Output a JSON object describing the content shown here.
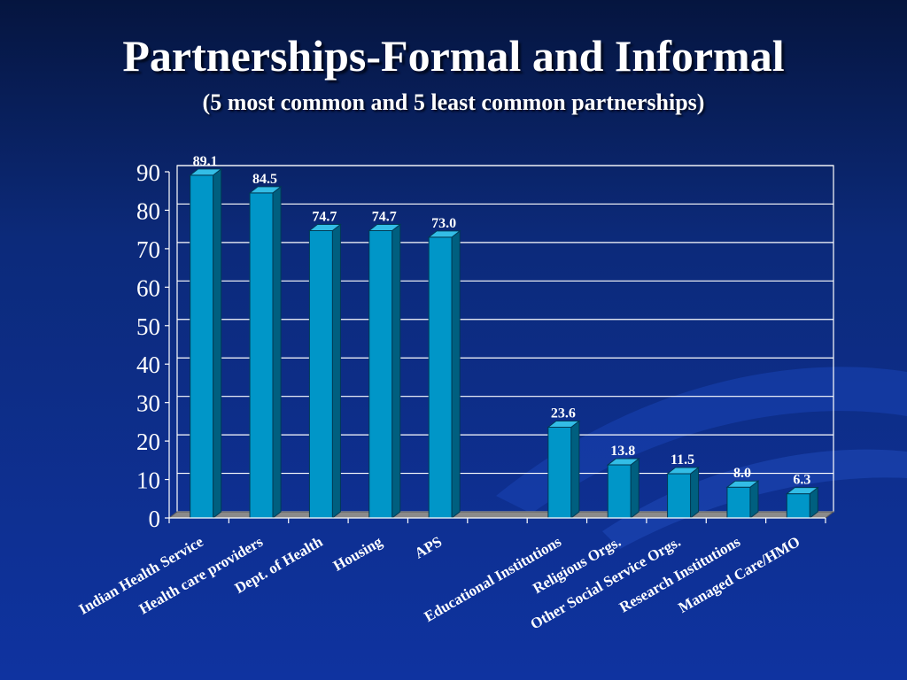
{
  "slide": {
    "title": "Partnerships-Formal and Informal",
    "subtitle": "(5 most common and 5 least common partnerships)"
  },
  "colors": {
    "background": "#0c2a7a",
    "bar_front": "#0096c8",
    "bar_side": "#005f7f",
    "bar_top": "#33bde6",
    "gridline": "#ffffff",
    "floor": "#8a8a8a"
  },
  "chart_data": {
    "type": "bar",
    "title": "",
    "xlabel": "",
    "ylabel": "",
    "ylim": [
      0,
      90
    ],
    "yticks": [
      0,
      10,
      20,
      30,
      40,
      50,
      60,
      70,
      80,
      90
    ],
    "grid": true,
    "categories": [
      "Indian Health Service",
      "Health care providers",
      "Dept. of Health",
      "Housing",
      "APS",
      "",
      "Educational Institutions",
      "Religious Orgs.",
      "Other Social Service Orgs.",
      "Research Institutions",
      "Managed Care/HMO"
    ],
    "values": [
      89.1,
      84.5,
      74.7,
      74.7,
      73.0,
      null,
      23.6,
      13.8,
      11.5,
      8.0,
      6.3
    ],
    "data_labels": [
      "89.1",
      "84.5",
      "74.7",
      "74.7",
      "73.0",
      "",
      "23.6",
      "13.8",
      "11.5",
      "8.0",
      "6.3"
    ]
  }
}
